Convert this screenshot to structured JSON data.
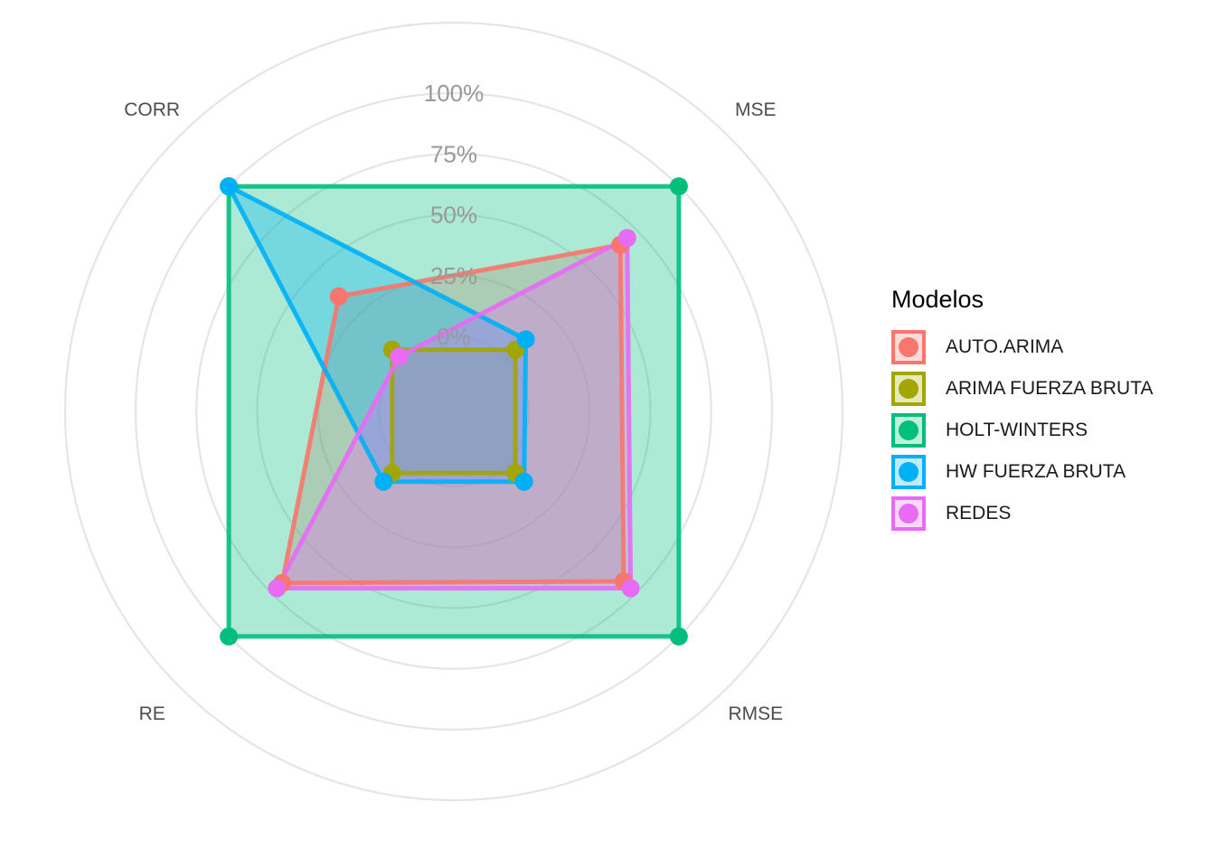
{
  "chart_data": {
    "type": "radar",
    "axes": [
      "CORR",
      "MSE",
      "RMSE",
      "RE"
    ],
    "radial_ticks": [
      0,
      25,
      50,
      75,
      100
    ],
    "radial_tick_labels": [
      "0%",
      "25%",
      "50%",
      "75%",
      "100%"
    ],
    "rlim": [
      0,
      100
    ],
    "grid": true,
    "legend_position": "right",
    "legend_title": "Modelos",
    "series": [
      {
        "name": "AUTO.ARIMA",
        "color": "#F8766D",
        "values": [
          36,
          66,
          68,
          69
        ]
      },
      {
        "name": "ARIMA FUERZA BRUTA",
        "color": "#A3A500",
        "values": [
          5,
          5,
          5,
          5
        ]
      },
      {
        "name": "HOLT-WINTERS",
        "color": "#00BF7D",
        "values": [
          100,
          100,
          100,
          100
        ]
      },
      {
        "name": "HW FUERZA BRUTA",
        "color": "#00B0F6",
        "values": [
          100,
          11,
          10,
          10
        ]
      },
      {
        "name": "REDES",
        "color": "#E76BF3",
        "values": [
          1,
          70,
          72,
          72
        ]
      }
    ]
  }
}
